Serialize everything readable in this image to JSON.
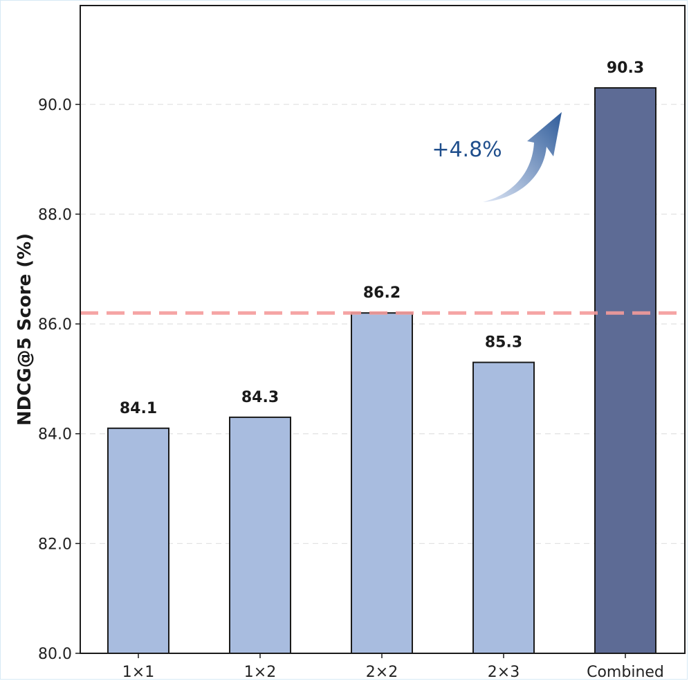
{
  "chart_data": {
    "type": "bar",
    "categories": [
      "1×1",
      "1×2",
      "2×2",
      "2×3",
      "Combined"
    ],
    "values": [
      84.1,
      84.3,
      86.2,
      85.3,
      90.3
    ],
    "value_labels": [
      "84.1",
      "84.3",
      "86.2",
      "85.3",
      "90.3"
    ],
    "title": "",
    "xlabel": "",
    "ylabel": "NDCG@5 Score (%)",
    "ylim": [
      80.0,
      91.8
    ],
    "yticks": [
      80.0,
      82.0,
      84.0,
      86.0,
      88.0,
      90.0
    ],
    "ytick_labels": [
      "80.0",
      "82.0",
      "84.0",
      "86.0",
      "88.0",
      "90.0"
    ],
    "grid": "horizontal dashed",
    "reference_line": {
      "value": 86.2,
      "color": "#f49b9b",
      "style": "dashed"
    },
    "annotation": {
      "text": "+4.8%",
      "color": "#1f4e8c"
    },
    "colors": {
      "bar": "#a8bcdf",
      "highlight_bar": "#5d6b95",
      "bar_edge": "#1a1a1a",
      "arrow_start": "#dfe7f6",
      "arrow_end": "#2f5c9a"
    }
  }
}
